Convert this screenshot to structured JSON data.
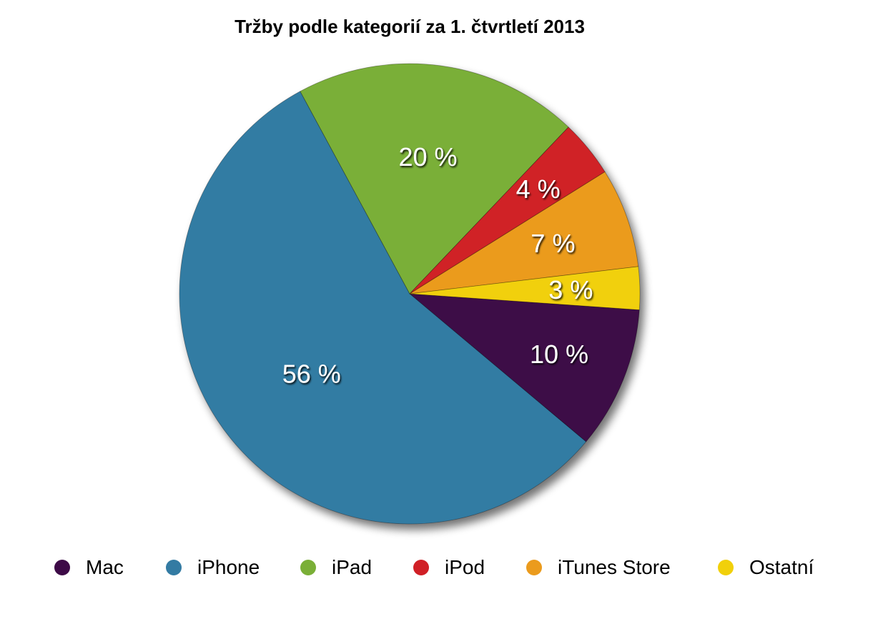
{
  "chart_data": {
    "type": "pie",
    "title": "Tržby podle kategorií za 1. čtvrtletí 2013",
    "slices": [
      {
        "name": "Mac",
        "value": 10,
        "label": "10 %",
        "color": "#3d0a47"
      },
      {
        "name": "iPhone",
        "value": 56,
        "label": "56 %",
        "color": "#337ba3"
      },
      {
        "name": "iPad",
        "value": 20,
        "label": "20 %",
        "color": "#7aaf37"
      },
      {
        "name": "iPod",
        "value": 4,
        "label": "4 %",
        "color": "#d02026"
      },
      {
        "name": "iTunes Store",
        "value": 7,
        "label": "7 %",
        "color": "#eb9b1d"
      },
      {
        "name": "Ostatní",
        "value": 3,
        "label": "3 %",
        "color": "#f1d00a"
      }
    ],
    "legend_position": "bottom"
  }
}
